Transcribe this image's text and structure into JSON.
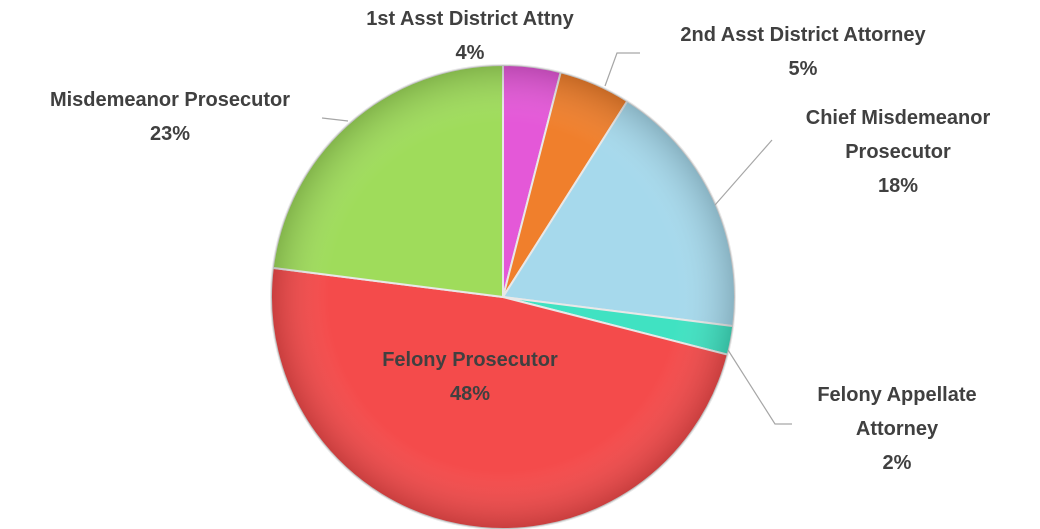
{
  "chart_data": {
    "type": "pie",
    "categories": [
      "1st Asst District Attny",
      "2nd Asst District Attorney",
      "Chief Misdemeanor Prosecutor",
      "Felony Appellate Attorney",
      "Felony Prosecutor",
      "Misdemeanor Prosecutor"
    ],
    "values": [
      4,
      5,
      18,
      2,
      48,
      23
    ],
    "value_labels": [
      "4%",
      "5%",
      "18%",
      "2%",
      "48%",
      "23%"
    ],
    "colors": [
      "#e458d8",
      "#f07f2c",
      "#a6d9ec",
      "#40e2c2",
      "#f44b4b",
      "#9fdc5b"
    ]
  }
}
